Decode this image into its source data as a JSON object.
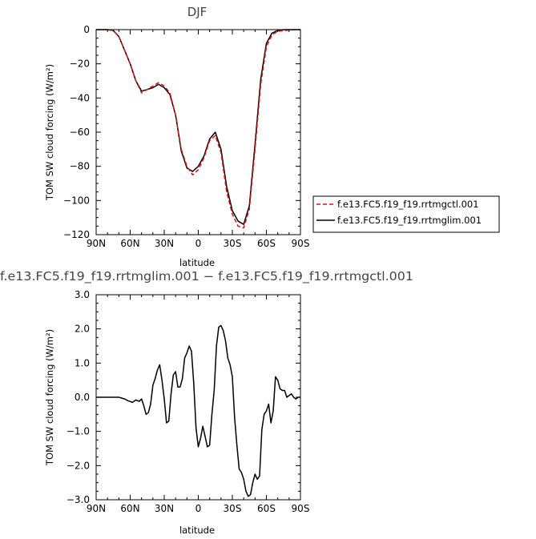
{
  "chart_data": [
    {
      "type": "line",
      "title": "DJF",
      "xlabel": "latitude",
      "ylabel": "TOM SW cloud forcing (W/m²)",
      "xlim": [
        90,
        -90
      ],
      "ylim": [
        -120,
        0
      ],
      "xticks": [
        90,
        60,
        30,
        0,
        -30,
        -60,
        -90
      ],
      "xticklabels": [
        "90N",
        "60N",
        "30N",
        "0",
        "30S",
        "60S",
        "90S"
      ],
      "yticks": [
        0,
        -20,
        -40,
        -60,
        -80,
        -100,
        -120
      ],
      "yticklabels": [
        "0",
        "−20",
        "−40",
        "−60",
        "−80",
        "−100",
        "−120"
      ],
      "grid": false,
      "legend_position": "right-bottom",
      "x": [
        90,
        85,
        80,
        75,
        70,
        65,
        60,
        55,
        50,
        45,
        40,
        35,
        30,
        25,
        20,
        15,
        10,
        5,
        0,
        -5,
        -10,
        -15,
        -20,
        -25,
        -30,
        -35,
        -40,
        -45,
        -50,
        -55,
        -60,
        -65,
        -70,
        -75,
        -80,
        -85,
        -90
      ],
      "series": [
        {
          "name": "f.e13.FC5.f19_f19.rrtmgctl.001",
          "color": "#e01010",
          "dash": "dashed",
          "values": [
            0,
            0,
            0,
            -0.5,
            -4,
            -12,
            -20,
            -30,
            -37,
            -35,
            -33,
            -31,
            -33,
            -37,
            -50,
            -70,
            -80,
            -85,
            -82,
            -75,
            -65,
            -62,
            -72,
            -95,
            -108,
            -115,
            -116,
            -105,
            -70,
            -32,
            -10,
            -3,
            -1,
            -0.5,
            -0.3,
            0,
            0
          ]
        },
        {
          "name": "f.e13.FC5.f19_f19.rrtmglim.001",
          "color": "#000000",
          "dash": "solid",
          "values": [
            0,
            0,
            0,
            -0.5,
            -4,
            -12,
            -20,
            -30,
            -36,
            -35,
            -34,
            -32,
            -34,
            -38,
            -50,
            -71,
            -81,
            -83,
            -80,
            -74,
            -64,
            -60,
            -70,
            -92,
            -106,
            -112,
            -114,
            -103,
            -67,
            -29,
            -8,
            -2,
            -0.5,
            0,
            0,
            0,
            0
          ]
        }
      ]
    },
    {
      "type": "line",
      "title": "f.e13.FC5.f19_f19.rrtmglim.001 − f.e13.FC5.f19_f19.rrtmgctl.001",
      "xlabel": "latitude",
      "ylabel": "TOM SW cloud forcing (W/m²)",
      "xlim": [
        90,
        -90
      ],
      "ylim": [
        -3,
        3
      ],
      "xticks": [
        90,
        60,
        30,
        0,
        -30,
        -60,
        -90
      ],
      "xticklabels": [
        "90N",
        "60N",
        "30N",
        "0",
        "30S",
        "60S",
        "90S"
      ],
      "yticks": [
        3,
        2,
        1,
        0,
        -1,
        -2,
        -3
      ],
      "yticklabels": [
        "3.0",
        "2.0",
        "1.0",
        "0.0",
        "−1.0",
        "−2.0",
        "−3.0"
      ],
      "grid": false,
      "series": [
        {
          "color": "#000000",
          "x": [
            90,
            85,
            80,
            75,
            70,
            65,
            62,
            58,
            55,
            52,
            50,
            48,
            46,
            44,
            42,
            40,
            38,
            36,
            34,
            32,
            30,
            28,
            26,
            24,
            22,
            20,
            18,
            16,
            14,
            12,
            10,
            8,
            6,
            4,
            2,
            0,
            -2,
            -4,
            -6,
            -8,
            -10,
            -12,
            -14,
            -16,
            -18,
            -20,
            -22,
            -24,
            -26,
            -28,
            -30,
            -32,
            -34,
            -36,
            -38,
            -40,
            -42,
            -44,
            -46,
            -48,
            -50,
            -52,
            -54,
            -56,
            -58,
            -60,
            -62,
            -64,
            -66,
            -68,
            -70,
            -72,
            -74,
            -76,
            -78,
            -80,
            -82,
            -84,
            -86,
            -88,
            -90
          ],
          "values": [
            0,
            0,
            0,
            0,
            0,
            -0.05,
            -0.1,
            -0.15,
            -0.08,
            -0.12,
            -0.05,
            -0.25,
            -0.5,
            -0.45,
            -0.2,
            0.35,
            0.55,
            0.8,
            0.95,
            0.5,
            -0.05,
            -0.75,
            -0.7,
            0.1,
            0.65,
            0.75,
            0.3,
            0.3,
            0.55,
            1.15,
            1.3,
            1.5,
            1.35,
            0.4,
            -0.9,
            -1.45,
            -1.2,
            -0.85,
            -1.15,
            -1.45,
            -1.4,
            -0.5,
            0.2,
            1.5,
            2.05,
            2.1,
            1.95,
            1.65,
            1.15,
            0.95,
            0.6,
            -0.6,
            -1.4,
            -2.1,
            -2.2,
            -2.4,
            -2.75,
            -2.9,
            -2.85,
            -2.5,
            -2.25,
            -2.4,
            -2.3,
            -0.95,
            -0.5,
            -0.4,
            -0.2,
            -0.75,
            -0.4,
            0.6,
            0.5,
            0.25,
            0.2,
            0.2,
            0.0,
            0.05,
            0.1,
            0.0,
            -0.05,
            0.0,
            0.0
          ]
        }
      ]
    }
  ]
}
